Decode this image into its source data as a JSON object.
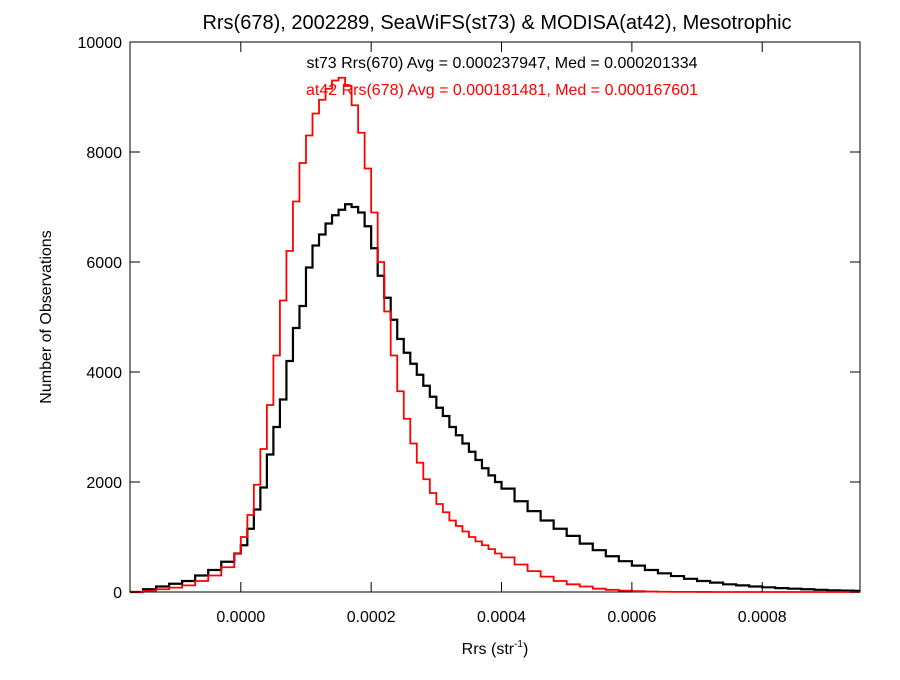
{
  "chart_data": {
    "type": "line",
    "title": "Rrs(678), 2002289, SeaWiFS(st73) & MODISA(at42), Mesotrophic",
    "xlabel_main": "Rrs (str",
    "xlabel_sup": "-1",
    "xlabel_close": ")",
    "ylabel": "Number of Observations",
    "xlim": [
      -0.00017,
      0.00095
    ],
    "ylim": [
      0,
      10000
    ],
    "xticks": [
      0.0,
      0.0002,
      0.0004,
      0.0006,
      0.0008
    ],
    "xtick_labels": [
      "0.0000",
      "0.0002",
      "0.0004",
      "0.0006",
      "0.0008"
    ],
    "yticks": [
      0,
      2000,
      4000,
      6000,
      8000,
      10000
    ],
    "ytick_labels": [
      "0",
      "2000",
      "4000",
      "6000",
      "8000",
      "10000"
    ],
    "grid": false,
    "legend_position": "top-center",
    "annotations": [
      {
        "text": "st73 Rrs(670) Avg = 0.000237947, Med = 0.000201334",
        "color": "#000000"
      },
      {
        "text": "at42 Rrs(678) Avg = 0.000181481, Med = 0.000167601",
        "color": "#ff0000"
      }
    ],
    "series": [
      {
        "color": "#000000",
        "step": true,
        "x": [
          -0.00017,
          -0.00015,
          -0.00013,
          -0.00011,
          -9e-05,
          -7e-05,
          -5e-05,
          -3e-05,
          -1e-05,
          0.0,
          1e-05,
          2e-05,
          3e-05,
          4e-05,
          5e-05,
          6e-05,
          7e-05,
          8e-05,
          9e-05,
          0.0001,
          0.00011,
          0.00012,
          0.00013,
          0.00014,
          0.00015,
          0.00016,
          0.00017,
          0.00018,
          0.00019,
          0.0002,
          0.00021,
          0.00022,
          0.00023,
          0.00024,
          0.00025,
          0.00026,
          0.00027,
          0.00028,
          0.00029,
          0.0003,
          0.00031,
          0.00032,
          0.00033,
          0.00034,
          0.00035,
          0.00036,
          0.00037,
          0.00038,
          0.00039,
          0.0004,
          0.00042,
          0.00044,
          0.00046,
          0.00048,
          0.0005,
          0.00052,
          0.00054,
          0.00056,
          0.00058,
          0.0006,
          0.00062,
          0.00064,
          0.00066,
          0.00068,
          0.0007,
          0.00072,
          0.00074,
          0.00076,
          0.00078,
          0.0008,
          0.00082,
          0.00084,
          0.00086,
          0.00088,
          0.0009,
          0.00092,
          0.00094
        ],
        "values": [
          0,
          50,
          100,
          150,
          200,
          300,
          400,
          550,
          700,
          850,
          1150,
          1500,
          1900,
          2500,
          3000,
          3500,
          4200,
          4800,
          5200,
          5900,
          6300,
          6500,
          6700,
          6850,
          6950,
          7050,
          7000,
          6900,
          6650,
          6250,
          5750,
          5350,
          4950,
          4600,
          4350,
          4150,
          3950,
          3750,
          3550,
          3350,
          3200,
          3000,
          2850,
          2700,
          2550,
          2400,
          2250,
          2120,
          2000,
          1880,
          1650,
          1470,
          1300,
          1150,
          1020,
          880,
          760,
          650,
          560,
          480,
          400,
          340,
          290,
          240,
          200,
          170,
          140,
          120,
          100,
          85,
          70,
          60,
          50,
          40,
          30,
          25,
          20
        ]
      },
      {
        "color": "#ff0000",
        "step": true,
        "x": [
          -0.00017,
          -0.00015,
          -0.00013,
          -0.00011,
          -9e-05,
          -7e-05,
          -5e-05,
          -3e-05,
          -1e-05,
          0.0,
          1e-05,
          2e-05,
          3e-05,
          4e-05,
          5e-05,
          6e-05,
          7e-05,
          8e-05,
          9e-05,
          0.0001,
          0.00011,
          0.00012,
          0.00013,
          0.00014,
          0.00015,
          0.00016,
          0.00017,
          0.00018,
          0.00019,
          0.0002,
          0.00021,
          0.00022,
          0.00023,
          0.00024,
          0.00025,
          0.00026,
          0.00027,
          0.00028,
          0.00029,
          0.0003,
          0.00031,
          0.00032,
          0.00033,
          0.00034,
          0.00035,
          0.00036,
          0.00037,
          0.00038,
          0.00039,
          0.0004,
          0.00042,
          0.00044,
          0.00046,
          0.00048,
          0.0005,
          0.00052,
          0.00054,
          0.00056,
          0.00058,
          0.0006,
          0.00062,
          0.00064,
          0.00066,
          0.00068,
          0.0007,
          0.00072,
          0.00074,
          0.00076,
          0.00078,
          0.0008,
          0.00082,
          0.00084,
          0.00086,
          0.00088,
          0.0009,
          0.00092,
          0.00094
        ],
        "values": [
          0,
          20,
          50,
          80,
          120,
          200,
          300,
          450,
          700,
          1000,
          1400,
          1950,
          2600,
          3400,
          4300,
          5300,
          6200,
          7100,
          7800,
          8300,
          8700,
          8950,
          9150,
          9300,
          9350,
          9200,
          8850,
          8350,
          7700,
          6900,
          6000,
          5100,
          4300,
          3650,
          3150,
          2700,
          2350,
          2050,
          1800,
          1600,
          1450,
          1300,
          1200,
          1100,
          1000,
          920,
          850,
          780,
          700,
          630,
          500,
          380,
          280,
          200,
          140,
          100,
          60,
          40,
          25,
          15,
          8,
          5,
          3,
          2,
          1,
          0,
          0,
          0,
          0,
          0,
          0,
          0,
          0,
          0,
          0,
          0,
          0
        ]
      }
    ]
  }
}
